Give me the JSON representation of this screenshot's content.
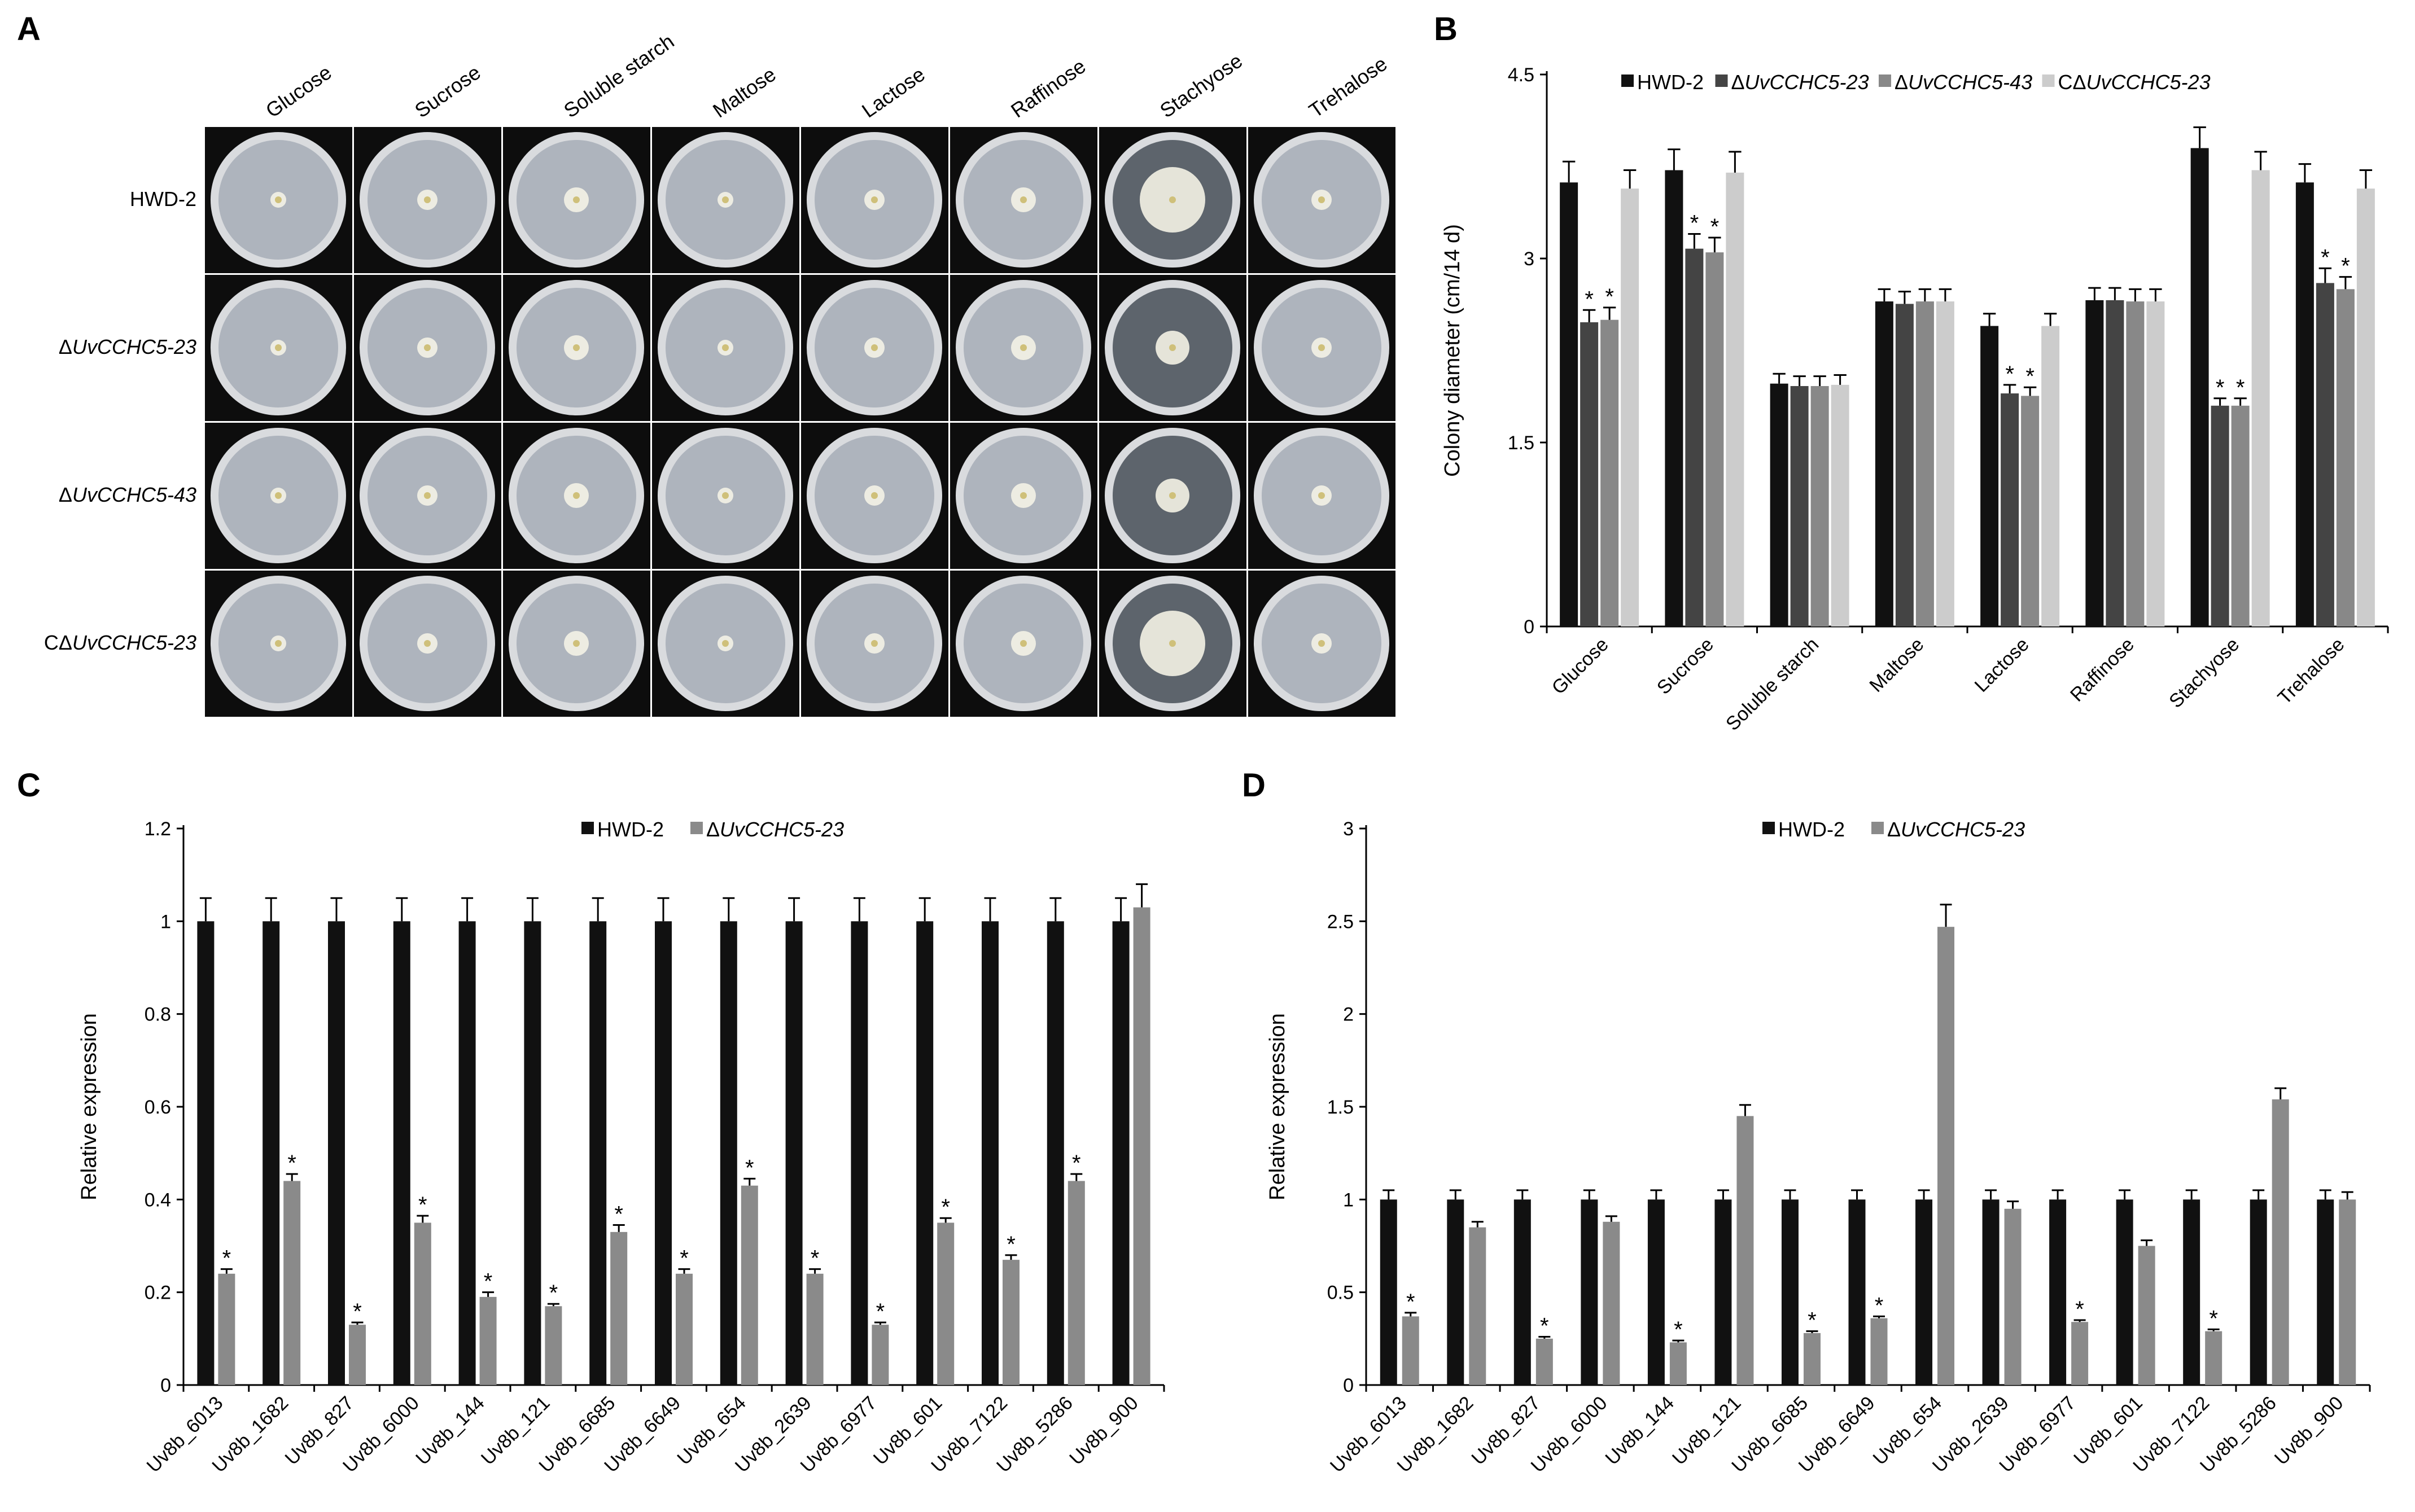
{
  "panels": [
    "A",
    "B",
    "C",
    "D"
  ],
  "photo_grid": {
    "columns": [
      "Glucose",
      "Sucrose",
      "Soluble starch",
      "Maltose",
      "Lactose",
      "Raffinose",
      "Stachyose",
      "Trehalose"
    ],
    "rows": [
      "HWD-2",
      "ΔUvCCHC5-23",
      "ΔUvCCHC5-43",
      "CΔUvCCHC5-23"
    ],
    "colors": {
      "background": "#0d0d0d",
      "plate_outer": "#d9dbde",
      "plate_inner": "#aeb4bd",
      "colony": "#f4f2e6"
    }
  },
  "chart_data": [
    {
      "id": "B",
      "type": "bar",
      "title": "",
      "xlabel": "",
      "ylabel": "Colony diameter (cm/14 d)",
      "ylim": [
        0,
        4.5
      ],
      "yticks": [
        "0",
        "1.5",
        "3",
        "4.5"
      ],
      "categories": [
        "Glucose",
        "Sucrose",
        "Soluble starch",
        "Maltose",
        "Lactose",
        "Raffinose",
        "Stachyose",
        "Trehalose"
      ],
      "series": [
        {
          "name": "HWD-2",
          "color": "#111111",
          "values": [
            3.62,
            3.72,
            1.98,
            2.65,
            2.45,
            2.66,
            3.9,
            3.62
          ],
          "errors": [
            0.17,
            0.17,
            0.08,
            0.1,
            0.1,
            0.1,
            0.17,
            0.15
          ],
          "stars": [
            false,
            false,
            false,
            false,
            false,
            false,
            false,
            false
          ]
        },
        {
          "name": "ΔUvCCHC5-23",
          "color": "#444444",
          "values": [
            2.48,
            3.08,
            1.96,
            2.63,
            1.9,
            2.66,
            1.8,
            2.8
          ],
          "errors": [
            0.1,
            0.12,
            0.08,
            0.1,
            0.07,
            0.1,
            0.06,
            0.12
          ],
          "stars": [
            true,
            true,
            false,
            false,
            true,
            false,
            true,
            true
          ]
        },
        {
          "name": "ΔUvCCHC5-43",
          "color": "#888888",
          "values": [
            2.5,
            3.05,
            1.96,
            2.65,
            1.88,
            2.65,
            1.8,
            2.75
          ],
          "errors": [
            0.1,
            0.12,
            0.08,
            0.1,
            0.07,
            0.1,
            0.06,
            0.1
          ],
          "stars": [
            true,
            true,
            false,
            false,
            true,
            false,
            true,
            true
          ]
        },
        {
          "name": "CΔUvCCHC5-23",
          "color": "#cccccc",
          "values": [
            3.57,
            3.7,
            1.97,
            2.65,
            2.45,
            2.65,
            3.72,
            3.57
          ],
          "errors": [
            0.15,
            0.17,
            0.08,
            0.1,
            0.1,
            0.1,
            0.15,
            0.15
          ],
          "stars": [
            false,
            false,
            false,
            false,
            false,
            false,
            false,
            false
          ]
        }
      ]
    },
    {
      "id": "C",
      "type": "bar",
      "title": "",
      "xlabel": "",
      "ylabel": "Relative expression",
      "ylim": [
        0,
        1.2
      ],
      "yticks": [
        "0",
        "0.2",
        "0.4",
        "0.6",
        "0.8",
        "1",
        "1.2"
      ],
      "categories": [
        "Uv8b_6013",
        "Uv8b_1682",
        "Uv8b_827",
        "Uv8b_6000",
        "Uv8b_144",
        "Uv8b_121",
        "Uv8b_6685",
        "Uv8b_6649",
        "Uv8b_654",
        "Uv8b_2639",
        "Uv8b_6977",
        "Uv8b_601",
        "Uv8b_7122",
        "Uv8b_5286",
        "Uv8b_900"
      ],
      "series": [
        {
          "name": "HWD-2",
          "color": "#111111",
          "values": [
            1,
            1,
            1,
            1,
            1,
            1,
            1,
            1,
            1,
            1,
            1,
            1,
            1,
            1,
            1
          ],
          "errors": [
            0.05,
            0.05,
            0.05,
            0.05,
            0.05,
            0.05,
            0.05,
            0.05,
            0.05,
            0.05,
            0.05,
            0.05,
            0.05,
            0.05,
            0.05
          ],
          "stars": [
            false,
            false,
            false,
            false,
            false,
            false,
            false,
            false,
            false,
            false,
            false,
            false,
            false,
            false,
            false
          ]
        },
        {
          "name": "ΔUvCCHC5-23",
          "color": "#8a8a8a",
          "values": [
            0.24,
            0.44,
            0.13,
            0.35,
            0.19,
            0.17,
            0.33,
            0.24,
            0.43,
            0.24,
            0.13,
            0.35,
            0.27,
            0.44,
            1.03
          ],
          "errors": [
            0.01,
            0.015,
            0.005,
            0.015,
            0.01,
            0.005,
            0.015,
            0.01,
            0.015,
            0.01,
            0.005,
            0.01,
            0.01,
            0.015,
            0.05
          ],
          "stars": [
            true,
            true,
            true,
            true,
            true,
            true,
            true,
            true,
            true,
            true,
            true,
            true,
            true,
            true,
            false
          ]
        }
      ]
    },
    {
      "id": "D",
      "type": "bar",
      "title": "",
      "xlabel": "",
      "ylabel": "Relative expression",
      "ylim": [
        0,
        3
      ],
      "yticks": [
        "0",
        "0.5",
        "1",
        "1.5",
        "2",
        "2.5",
        "3"
      ],
      "categories": [
        "Uv8b_6013",
        "Uv8b_1682",
        "Uv8b_827",
        "Uv8b_6000",
        "Uv8b_144",
        "Uv8b_121",
        "Uv8b_6685",
        "Uv8b_6649",
        "Uv8b_654",
        "Uv8b_2639",
        "Uv8b_6977",
        "Uv8b_601",
        "Uv8b_7122",
        "Uv8b_5286",
        "Uv8b_900"
      ],
      "series": [
        {
          "name": "HWD-2",
          "color": "#111111",
          "values": [
            1,
            1,
            1,
            1,
            1,
            1,
            1,
            1,
            1,
            1,
            1,
            1,
            1,
            1,
            1
          ],
          "errors": [
            0.05,
            0.05,
            0.05,
            0.05,
            0.05,
            0.05,
            0.05,
            0.05,
            0.05,
            0.05,
            0.05,
            0.05,
            0.05,
            0.05,
            0.05
          ],
          "stars": [
            false,
            false,
            false,
            false,
            false,
            false,
            false,
            false,
            false,
            false,
            false,
            false,
            false,
            false,
            false
          ]
        },
        {
          "name": "ΔUvCCHC5-23",
          "color": "#8a8a8a",
          "values": [
            0.37,
            0.85,
            0.25,
            0.88,
            0.23,
            1.45,
            0.28,
            0.36,
            2.47,
            0.95,
            0.34,
            0.75,
            0.29,
            1.54,
            1.0
          ],
          "errors": [
            0.02,
            0.03,
            0.01,
            0.03,
            0.01,
            0.06,
            0.01,
            0.01,
            0.12,
            0.04,
            0.01,
            0.03,
            0.01,
            0.06,
            0.04
          ],
          "stars": [
            true,
            false,
            true,
            false,
            true,
            false,
            true,
            true,
            false,
            false,
            true,
            false,
            true,
            false,
            false
          ]
        }
      ]
    }
  ]
}
